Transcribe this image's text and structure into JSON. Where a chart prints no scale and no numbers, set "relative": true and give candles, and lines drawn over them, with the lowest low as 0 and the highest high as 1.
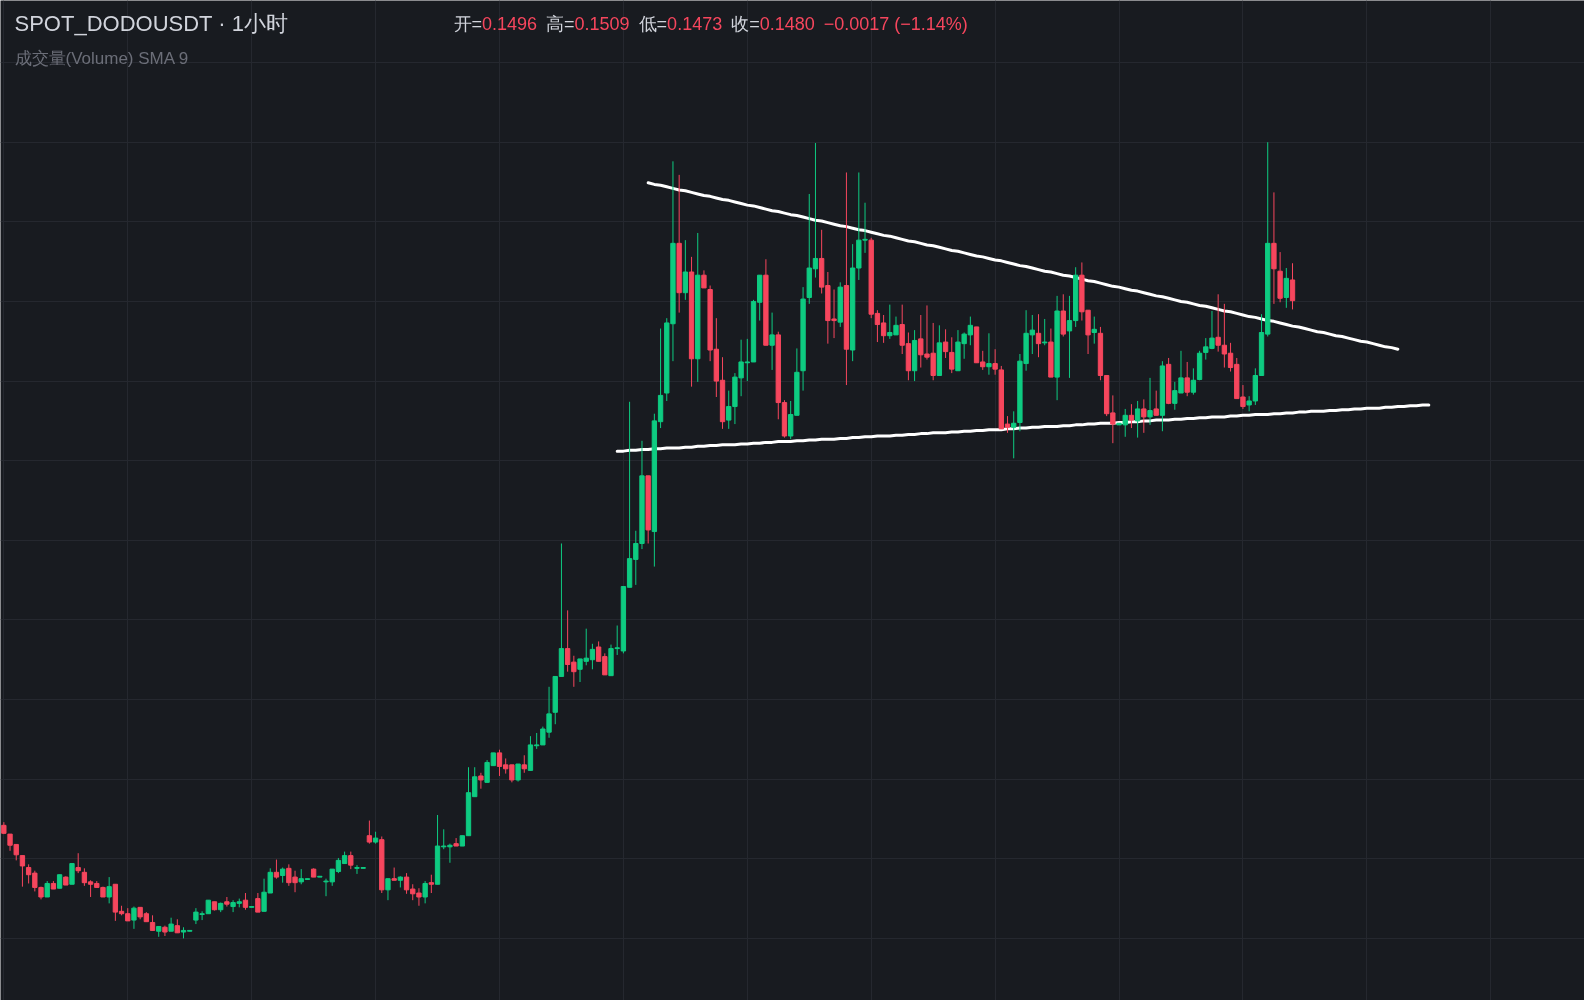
{
  "chart_data": {
    "type": "candlestick",
    "title": "SPOT_DODOUSDT · 1小时",
    "subtitle": "成交量(Volume) SMA 9",
    "annotations": [
      "开=0.1496",
      "高=0.1509",
      "低=0.1473",
      "收=0.1480",
      "−0.0017 (−1.14%)"
    ],
    "relative": true,
    "grid": true,
    "categories": [
      null,
      null,
      null,
      null,
      null,
      null,
      null,
      null,
      null,
      null,
      null,
      null,
      null,
      null,
      null,
      null,
      null,
      null,
      null,
      null,
      null,
      null,
      null,
      null,
      null,
      null,
      null,
      null,
      null,
      null,
      null,
      null,
      null,
      null,
      null,
      null,
      null,
      null,
      null,
      null,
      null,
      null,
      null,
      null,
      null,
      null,
      null,
      null,
      null,
      null,
      null,
      null,
      null,
      null,
      null,
      null,
      null,
      null,
      null,
      null,
      null,
      null,
      null,
      null,
      null,
      null,
      null,
      null,
      null,
      null,
      null,
      null,
      null,
      null,
      null,
      null,
      null,
      null,
      null,
      null,
      null,
      null,
      null,
      null,
      null,
      null,
      null,
      null,
      null,
      null,
      null,
      null,
      null,
      null,
      null,
      null,
      null,
      null,
      null,
      null,
      null,
      null,
      null,
      null,
      null,
      null,
      null,
      null,
      null,
      null,
      null,
      null,
      null,
      null,
      null,
      null,
      null,
      null,
      null,
      null,
      null,
      null,
      null,
      null,
      null,
      null,
      null,
      null,
      null,
      null,
      null,
      null,
      null,
      null,
      null,
      null,
      null,
      null,
      null,
      null,
      null,
      null,
      null,
      null,
      null,
      null,
      null,
      null,
      null,
      null,
      null,
      null,
      null,
      null,
      null,
      null,
      null,
      null,
      null,
      null,
      null,
      null,
      null,
      null,
      null,
      null,
      null,
      null,
      null,
      null,
      null,
      null,
      null,
      null,
      null,
      null,
      null,
      null,
      null,
      null,
      null,
      null,
      null,
      null,
      null,
      null,
      null,
      null,
      null,
      null,
      null,
      null,
      null,
      null,
      null,
      null,
      null,
      null,
      null,
      null,
      null,
      null,
      null,
      null,
      null,
      null,
      null,
      null,
      null,
      null,
      null,
      null,
      null,
      null,
      null,
      null,
      null,
      null,
      null,
      null,
      null,
      null,
      null,
      null,
      null,
      null,
      null,
      null,
      null,
      null,
      null
    ],
    "ohlc": [
      [
        0.142,
        0.146,
        0.131,
        0.132
      ],
      [
        0.131,
        0.131,
        0.11,
        0.117
      ],
      [
        0.118,
        0.118,
        0.098,
        0.105
      ],
      [
        0.104,
        0.104,
        0.065,
        0.091
      ],
      [
        0.089,
        0.093,
        0.069,
        0.08
      ],
      [
        0.082,
        0.085,
        0.059,
        0.064
      ],
      [
        0.064,
        0.065,
        0.049,
        0.052
      ],
      [
        0.052,
        0.072,
        0.052,
        0.069
      ],
      [
        0.069,
        0.072,
        0.062,
        0.062
      ],
      [
        0.063,
        0.08,
        0.063,
        0.08
      ],
      [
        0.077,
        0.078,
        0.067,
        0.067
      ],
      [
        0.068,
        0.094,
        0.068,
        0.094
      ],
      [
        0.089,
        0.107,
        0.082,
        0.085
      ],
      [
        0.083,
        0.088,
        0.066,
        0.07
      ],
      [
        0.071,
        0.073,
        0.052,
        0.068
      ],
      [
        0.069,
        0.072,
        0.064,
        0.064
      ],
      [
        0.064,
        0.065,
        0.052,
        0.052
      ],
      [
        0.052,
        0.077,
        0.044,
        0.065
      ],
      [
        0.068,
        0.068,
        0.022,
        0.033
      ],
      [
        0.034,
        0.041,
        0.029,
        0.031
      ],
      [
        0.031,
        0.038,
        0.022,
        0.022
      ],
      [
        0.023,
        0.04,
        0.012,
        0.038
      ],
      [
        0.039,
        0.039,
        0.024,
        0.027
      ],
      [
        0.031,
        0.033,
        0.021,
        0.021
      ],
      [
        0.02,
        0.029,
        0.01,
        0.01
      ],
      [
        0.009,
        0.015,
        0.002,
        0.015
      ],
      [
        0.014,
        0.016,
        0.003,
        0.008
      ],
      [
        0.009,
        0.026,
        0.009,
        0.018
      ],
      [
        0.016,
        0.024,
        0.007,
        0.007
      ],
      [
        0.008,
        0.014,
        0,
        0.01
      ],
      [
        0.009,
        0.01,
        0.009,
        0.01
      ],
      [
        0.023,
        0.038,
        0.018,
        0.033
      ],
      [
        0.03,
        0.034,
        0.023,
        0.031
      ],
      [
        0.031,
        0.048,
        0.031,
        0.048
      ],
      [
        0.046,
        0.046,
        0.035,
        0.036
      ],
      [
        0.036,
        0.045,
        0.033,
        0.044
      ],
      [
        0.046,
        0.052,
        0.04,
        0.043
      ],
      [
        0.04,
        0.048,
        0.033,
        0.045
      ],
      [
        0.044,
        0.05,
        0.039,
        0.046
      ],
      [
        0.048,
        0.057,
        0.036,
        0.039
      ],
      [
        0.039,
        0.04,
        0.039,
        0.04
      ],
      [
        0.05,
        0.057,
        0.033,
        0.033
      ],
      [
        0.034,
        0.075,
        0.034,
        0.058
      ],
      [
        0.057,
        0.088,
        0.057,
        0.083
      ],
      [
        0.083,
        0.099,
        0.075,
        0.077
      ],
      [
        0.079,
        0.089,
        0.07,
        0.087
      ],
      [
        0.088,
        0.093,
        0.066,
        0.07
      ],
      [
        0.077,
        0.085,
        0.058,
        0.07
      ],
      [
        0.071,
        0.087,
        0.068,
        0.075
      ],
      [
        0.074,
        0.075,
        0.074,
        0.075
      ],
      [
        0.087,
        0.088,
        0.077,
        0.077
      ],
      [
        0.077,
        0.078,
        0.077,
        0.078
      ],
      [
        0.071,
        0.075,
        0.053,
        0.072
      ],
      [
        0.071,
        0.087,
        0.066,
        0.087
      ],
      [
        0.084,
        0.101,
        0.082,
        0.098
      ],
      [
        0.094,
        0.109,
        0.094,
        0.104
      ],
      [
        0.104,
        0.109,
        0.087,
        0.092
      ],
      [
        0.088,
        0.092,
        0.081,
        0.089
      ],
      [
        0.088,
        0.089,
        0.088,
        0.089
      ],
      [
        0.129,
        0.148,
        0.119,
        0.121
      ],
      [
        0.121,
        0.134,
        0.119,
        0.126
      ],
      [
        0.124,
        0.128,
        0.057,
        0.061
      ],
      [
        0.061,
        0.075,
        0.048,
        0.075
      ],
      [
        0.075,
        0.089,
        0.073,
        0.073
      ],
      [
        0.073,
        0.078,
        0.064,
        0.077
      ],
      [
        0.077,
        0.082,
        0.056,
        0.061
      ],
      [
        0.062,
        0.068,
        0.048,
        0.056
      ],
      [
        0.057,
        0.063,
        0.041,
        0.052
      ],
      [
        0.052,
        0.072,
        0.044,
        0.069
      ],
      [
        0.07,
        0.08,
        0.057,
        0.068
      ],
      [
        0.068,
        0.155,
        0.068,
        0.116
      ],
      [
        0.115,
        0.137,
        0.112,
        0.116
      ],
      [
        0.115,
        0.119,
        0.095,
        0.117
      ],
      [
        0.119,
        0.126,
        0.116,
        0.116
      ],
      [
        0.116,
        0.129,
        0.116,
        0.129
      ],
      [
        0.129,
        0.215,
        0.129,
        0.183
      ],
      [
        0.178,
        0.215,
        0.178,
        0.203
      ],
      [
        0.204,
        0.208,
        0.188,
        0.199
      ],
      [
        0.196,
        0.224,
        0.196,
        0.221
      ],
      [
        0.217,
        0.233,
        0.217,
        0.233
      ],
      [
        0.233,
        0.237,
        0.204,
        0.216
      ],
      [
        0.218,
        0.226,
        0.207,
        0.213
      ],
      [
        0.218,
        0.218,
        0.196,
        0.199
      ],
      [
        0.199,
        0.219,
        0.197,
        0.219
      ],
      [
        0.218,
        0.23,
        0.208,
        0.213
      ],
      [
        0.211,
        0.254,
        0.211,
        0.243
      ],
      [
        0.242,
        0.258,
        0.238,
        0.243
      ],
      [
        0.243,
        0.266,
        0.243,
        0.263
      ],
      [
        0.259,
        0.316,
        0.252,
        0.282
      ],
      [
        0.284,
        0.329,
        0.269,
        0.329
      ],
      [
        0.329,
        0.496,
        0.329,
        0.364
      ],
      [
        0.364,
        0.412,
        0.335,
        0.344
      ],
      [
        0.347,
        0.355,
        0.316,
        0.335
      ],
      [
        0.338,
        0.351,
        0.322,
        0.351
      ],
      [
        0.348,
        0.389,
        0.343,
        0.352
      ],
      [
        0.35,
        0.37,
        0.338,
        0.363
      ],
      [
        0.366,
        0.373,
        0.348,
        0.348
      ],
      [
        0.354,
        0.358,
        0.331,
        0.331
      ],
      [
        0.33,
        0.369,
        0.33,
        0.364
      ],
      [
        0.364,
        0.393,
        0.356,
        0.365
      ],
      [
        0.361,
        0.442,
        0.358,
        0.442
      ],
      [
        0.441,
        0.674,
        0.441,
        0.477
      ],
      [
        0.476,
        0.512,
        0.444,
        0.496
      ],
      [
        0.496,
        0.625,
        0.489,
        0.581
      ],
      [
        0.581,
        0.581,
        0.496,
        0.513
      ],
      [
        0.511,
        0.659,
        0.467,
        0.65
      ],
      [
        0.649,
        0.766,
        0.641,
        0.682
      ],
      [
        0.685,
        0.779,
        0.675,
        0.773
      ],
      [
        0.772,
        0.976,
        0.725,
        0.873
      ],
      [
        0.873,
        0.959,
        0.786,
        0.811
      ],
      [
        0.811,
        0.877,
        0.802,
        0.837
      ],
      [
        0.837,
        0.856,
        0.693,
        0.728
      ],
      [
        0.728,
        0.886,
        0.699,
        0.833
      ],
      [
        0.833,
        0.839,
        0.817,
        0.817
      ],
      [
        0.815,
        0.82,
        0.725,
        0.739
      ],
      [
        0.74,
        0.779,
        0.68,
        0.7
      ],
      [
        0.701,
        0.73,
        0.64,
        0.649
      ],
      [
        0.651,
        0.688,
        0.64,
        0.668
      ],
      [
        0.668,
        0.71,
        0.646,
        0.705
      ],
      [
        0.704,
        0.752,
        0.681,
        0.724
      ],
      [
        0.723,
        0.753,
        0.7,
        0.724
      ],
      [
        0.724,
        0.802,
        0.724,
        0.8
      ],
      [
        0.799,
        0.833,
        0.776,
        0.833
      ],
      [
        0.833,
        0.853,
        0.745,
        0.745
      ],
      [
        0.745,
        0.786,
        0.714,
        0.758
      ],
      [
        0.758,
        0.762,
        0.652,
        0.673
      ],
      [
        0.673,
        0.676,
        0.629,
        0.631
      ],
      [
        0.631,
        0.675,
        0.627,
        0.658
      ],
      [
        0.657,
        0.741,
        0.657,
        0.711
      ],
      [
        0.713,
        0.818,
        0.688,
        0.803
      ],
      [
        0.805,
        0.935,
        0.797,
        0.842
      ],
      [
        0.841,
        0.999,
        0.83,
        0.854
      ],
      [
        0.854,
        0.89,
        0.81,
        0.818
      ],
      [
        0.82,
        0.837,
        0.747,
        0.776
      ],
      [
        0.778,
        0.815,
        0.754,
        0.776
      ],
      [
        0.774,
        0.824,
        0.768,
        0.818
      ],
      [
        0.82,
        0.962,
        0.695,
        0.74
      ],
      [
        0.739,
        0.872,
        0.725,
        0.842
      ],
      [
        0.842,
        0.962,
        0.827,
        0.877
      ],
      [
        0.877,
        0.924,
        0.861,
        0.878
      ],
      [
        0.877,
        0.88,
        0.779,
        0.784
      ],
      [
        0.785,
        0.789,
        0.749,
        0.771
      ],
      [
        0.773,
        0.783,
        0.748,
        0.757
      ],
      [
        0.757,
        0.796,
        0.753,
        0.761
      ],
      [
        0.758,
        0.781,
        0.758,
        0.77
      ],
      [
        0.771,
        0.796,
        0.734,
        0.745
      ],
      [
        0.747,
        0.761,
        0.701,
        0.713
      ],
      [
        0.713,
        0.764,
        0.7,
        0.751
      ],
      [
        0.753,
        0.783,
        0.717,
        0.733
      ],
      [
        0.734,
        0.795,
        0.727,
        0.73
      ],
      [
        0.735,
        0.773,
        0.701,
        0.707
      ],
      [
        0.707,
        0.77,
        0.707,
        0.748
      ],
      [
        0.749,
        0.765,
        0.729,
        0.737
      ],
      [
        0.736,
        0.755,
        0.71,
        0.715
      ],
      [
        0.713,
        0.764,
        0.713,
        0.749
      ],
      [
        0.747,
        0.761,
        0.728,
        0.759
      ],
      [
        0.758,
        0.781,
        0.745,
        0.77
      ],
      [
        0.768,
        0.768,
        0.723,
        0.723
      ],
      [
        0.724,
        0.738,
        0.714,
        0.718
      ],
      [
        0.718,
        0.76,
        0.708,
        0.722
      ],
      [
        0.722,
        0.74,
        0.708,
        0.715
      ],
      [
        0.714,
        0.719,
        0.64,
        0.64
      ],
      [
        0.646,
        0.656,
        0.635,
        0.642
      ],
      [
        0.642,
        0.662,
        0.603,
        0.647
      ],
      [
        0.648,
        0.734,
        0.637,
        0.725
      ],
      [
        0.722,
        0.789,
        0.713,
        0.76
      ],
      [
        0.758,
        0.783,
        0.734,
        0.764
      ],
      [
        0.76,
        0.784,
        0.73,
        0.747
      ],
      [
        0.748,
        0.778,
        0.745,
        0.749
      ],
      [
        0.749,
        0.766,
        0.705,
        0.705
      ],
      [
        0.705,
        0.807,
        0.676,
        0.788
      ],
      [
        0.788,
        0.809,
        0.756,
        0.759
      ],
      [
        0.763,
        0.807,
        0.704,
        0.776
      ],
      [
        0.776,
        0.843,
        0.768,
        0.833
      ],
      [
        0.833,
        0.849,
        0.776,
        0.787
      ],
      [
        0.789,
        0.789,
        0.734,
        0.758
      ],
      [
        0.761,
        0.781,
        0.747,
        0.765
      ],
      [
        0.76,
        0.768,
        0.701,
        0.707
      ],
      [
        0.707,
        0.707,
        0.656,
        0.659
      ],
      [
        0.66,
        0.682,
        0.622,
        0.646
      ],
      [
        0.645,
        0.647,
        0.645,
        0.647
      ],
      [
        0.645,
        0.665,
        0.63,
        0.657
      ],
      [
        0.657,
        0.671,
        0.641,
        0.651
      ],
      [
        0.65,
        0.675,
        0.629,
        0.665
      ],
      [
        0.665,
        0.677,
        0.635,
        0.655
      ],
      [
        0.655,
        0.704,
        0.645,
        0.663
      ],
      [
        0.665,
        0.688,
        0.657,
        0.657
      ],
      [
        0.657,
        0.725,
        0.637,
        0.719
      ],
      [
        0.721,
        0.729,
        0.671,
        0.672
      ],
      [
        0.672,
        0.699,
        0.664,
        0.688
      ],
      [
        0.685,
        0.738,
        0.685,
        0.704
      ],
      [
        0.704,
        0.724,
        0.681,
        0.686
      ],
      [
        0.686,
        0.716,
        0.683,
        0.701
      ],
      [
        0.702,
        0.738,
        0.701,
        0.735
      ],
      [
        0.736,
        0.754,
        0.727,
        0.743
      ],
      [
        0.741,
        0.788,
        0.74,
        0.754
      ],
      [
        0.755,
        0.809,
        0.737,
        0.745
      ],
      [
        0.745,
        0.797,
        0.717,
        0.734
      ],
      [
        0.735,
        0.748,
        0.712,
        0.717
      ],
      [
        0.721,
        0.729,
        0.678,
        0.678
      ],
      [
        0.68,
        0.695,
        0.665,
        0.668
      ],
      [
        0.67,
        0.681,
        0.662,
        0.675
      ],
      [
        0.675,
        0.716,
        0.67,
        0.707
      ],
      [
        0.707,
        0.784,
        0.707,
        0.761
      ],
      [
        0.759,
        1,
        0.756,
        0.873
      ],
      [
        0.873,
        0.937,
        0.797,
        0.841
      ],
      [
        0.838,
        0.862,
        0.799,
        0.804
      ],
      [
        0.805,
        0.842,
        0.792,
        0.829
      ],
      [
        0.827,
        0.848,
        0.79,
        0.801
      ],
      null,
      null,
      null,
      null,
      null,
      null,
      null,
      null,
      null,
      null,
      null,
      null,
      null,
      null,
      null,
      null,
      null,
      null,
      null,
      null,
      null,
      null
    ],
    "colors": [
      "#f6465d",
      "#f6465d",
      "#f6465d",
      "#f6465d",
      "#f6465d",
      "#f6465d",
      "#f6465d",
      "#0ecb81",
      "#f6465d",
      "#0ecb81",
      "#f6465d",
      "#0ecb81",
      "#f6465d",
      "#f6465d",
      "#f6465d",
      "#f6465d",
      "#f6465d",
      "#0ecb81",
      "#f6465d",
      "#f6465d",
      "#f6465d",
      "#0ecb81",
      "#f6465d",
      "#f6465d",
      "#f6465d",
      "#0ecb81",
      "#f6465d",
      "#0ecb81",
      "#f6465d",
      "#0ecb81",
      "#0ecb81",
      "#0ecb81",
      "#0ecb81",
      "#0ecb81",
      "#f6465d",
      "#0ecb81",
      "#f6465d",
      "#0ecb81",
      "#0ecb81",
      "#f6465d",
      "#0ecb81",
      "#f6465d",
      "#0ecb81",
      "#0ecb81",
      "#f6465d",
      "#0ecb81",
      "#f6465d",
      "#f6465d",
      "#0ecb81",
      "#0ecb81",
      "#f6465d",
      "#0ecb81",
      "#0ecb81",
      "#0ecb81",
      "#0ecb81",
      "#0ecb81",
      "#f6465d",
      "#0ecb81",
      "#0ecb81",
      "#f6465d",
      "#0ecb81",
      "#f6465d",
      "#0ecb81",
      "#f6465d",
      "#0ecb81",
      "#f6465d",
      "#f6465d",
      "#f6465d",
      "#0ecb81",
      "#f6465d",
      "#0ecb81",
      "#0ecb81",
      "#0ecb81",
      "#f6465d",
      "#0ecb81",
      "#0ecb81",
      "#0ecb81",
      "#f6465d",
      "#0ecb81",
      "#0ecb81",
      "#f6465d",
      "#f6465d",
      "#f6465d",
      "#0ecb81",
      "#f6465d",
      "#0ecb81",
      "#0ecb81",
      "#0ecb81",
      "#0ecb81",
      "#0ecb81",
      "#0ecb81",
      "#f6465d",
      "#f6465d",
      "#0ecb81",
      "#0ecb81",
      "#0ecb81",
      "#f6465d",
      "#f6465d",
      "#0ecb81",
      "#0ecb81",
      "#0ecb81",
      "#0ecb81",
      "#0ecb81",
      "#0ecb81",
      "#f6465d",
      "#0ecb81",
      "#0ecb81",
      "#0ecb81",
      "#0ecb81",
      "#f6465d",
      "#0ecb81",
      "#f6465d",
      "#0ecb81",
      "#f6465d",
      "#f6465d",
      "#f6465d",
      "#f6465d",
      "#0ecb81",
      "#0ecb81",
      "#0ecb81",
      "#0ecb81",
      "#0ecb81",
      "#0ecb81",
      "#f6465d",
      "#0ecb81",
      "#f6465d",
      "#f6465d",
      "#0ecb81",
      "#0ecb81",
      "#0ecb81",
      "#0ecb81",
      "#0ecb81",
      "#f6465d",
      "#f6465d",
      "#f6465d",
      "#0ecb81",
      "#f6465d",
      "#0ecb81",
      "#0ecb81",
      "#0ecb81",
      "#f6465d",
      "#f6465d",
      "#f6465d",
      "#0ecb81",
      "#0ecb81",
      "#f6465d",
      "#f6465d",
      "#0ecb81",
      "#f6465d",
      "#f6465d",
      "#f6465d",
      "#0ecb81",
      "#f6465d",
      "#f6465d",
      "#0ecb81",
      "#0ecb81",
      "#0ecb81",
      "#f6465d",
      "#f6465d",
      "#0ecb81",
      "#f6465d",
      "#f6465d",
      "#f6465d",
      "#0ecb81",
      "#0ecb81",
      "#0ecb81",
      "#0ecb81",
      "#f6465d",
      "#0ecb81",
      "#f6465d",
      "#0ecb81",
      "#f6465d",
      "#0ecb81",
      "#0ecb81",
      "#f6465d",
      "#f6465d",
      "#0ecb81",
      "#f6465d",
      "#f6465d",
      "#f6465d",
      "#0ecb81",
      "#0ecb81",
      "#f6465d",
      "#0ecb81",
      "#f6465d",
      "#0ecb81",
      "#f6465d",
      "#0ecb81",
      "#f6465d",
      "#0ecb81",
      "#0ecb81",
      "#f6465d",
      "#0ecb81",
      "#0ecb81",
      "#0ecb81",
      "#0ecb81",
      "#f6465d",
      "#f6465d",
      "#f6465d",
      "#f6465d",
      "#f6465d",
      "#0ecb81",
      "#0ecb81",
      "#0ecb81",
      "#0ecb81",
      "#f6465d",
      "#f6465d",
      "#0ecb81",
      "#f6465d",
      null,
      null,
      null,
      null,
      null,
      null,
      null,
      null,
      null,
      null,
      null,
      null,
      null,
      null,
      null,
      null,
      null,
      null,
      null,
      null,
      null,
      null
    ],
    "series": [
      {
        "type": "line",
        "color": "#ffffff",
        "values": [
          null,
          null,
          null,
          null,
          null,
          null,
          null,
          null,
          null,
          null,
          null,
          null,
          null,
          null,
          null,
          null,
          null,
          null,
          null,
          null,
          null,
          null,
          null,
          null,
          null,
          null,
          null,
          null,
          null,
          null,
          null,
          null,
          null,
          null,
          null,
          null,
          null,
          null,
          null,
          null,
          null,
          null,
          null,
          null,
          null,
          null,
          null,
          null,
          null,
          null,
          null,
          null,
          null,
          null,
          null,
          null,
          null,
          null,
          null,
          null,
          null,
          null,
          null,
          null,
          null,
          null,
          null,
          null,
          null,
          null,
          null,
          null,
          null,
          null,
          null,
          null,
          null,
          null,
          null,
          null,
          null,
          null,
          null,
          null,
          null,
          null,
          null,
          null,
          null,
          null,
          null,
          null,
          null,
          null,
          null,
          null,
          null,
          null,
          null,
          null,
          null,
          null,
          null,
          null,
          0.949,
          0.947,
          0.946,
          0.944,
          0.942,
          0.94,
          0.939,
          0.937,
          0.935,
          0.933,
          0.932,
          0.93,
          0.928,
          0.927,
          0.925,
          0.923,
          0.921,
          0.92,
          0.918,
          0.916,
          0.914,
          0.913,
          0.911,
          0.909,
          0.908,
          0.906,
          0.904,
          0.902,
          0.901,
          0.899,
          0.897,
          0.895,
          0.894,
          0.892,
          0.89,
          0.889,
          0.887,
          0.885,
          0.883,
          0.882,
          0.88,
          0.878,
          0.876,
          0.875,
          0.873,
          0.871,
          0.87,
          0.868,
          0.866,
          0.864,
          0.863,
          0.861,
          0.859,
          0.857,
          0.856,
          0.854,
          0.852,
          0.851,
          0.849,
          0.847,
          0.845,
          0.844,
          0.842,
          0.84,
          0.838,
          0.837,
          0.835,
          0.833,
          0.832,
          0.83,
          0.828,
          0.826,
          0.825,
          0.823,
          0.821,
          0.819,
          0.818,
          0.816,
          0.814,
          0.813,
          0.811,
          0.809,
          0.807,
          0.806,
          0.804,
          0.802,
          0.8,
          0.799,
          0.797,
          0.795,
          0.794,
          0.792,
          0.79,
          0.788,
          0.787,
          0.785,
          0.783,
          0.781,
          0.78,
          0.778,
          0.776,
          0.775,
          0.773,
          0.771,
          0.769,
          0.768,
          0.766,
          0.764,
          0.762,
          0.761,
          0.759,
          0.757,
          0.756,
          0.754,
          0.752,
          0.75,
          0.749,
          0.747,
          0.745,
          0.743,
          0.742,
          0.74,
          null,
          null,
          null,
          null,
          null
        ]
      },
      {
        "type": "line",
        "color": "#ffffff",
        "values": [
          null,
          null,
          null,
          null,
          null,
          null,
          null,
          null,
          null,
          null,
          null,
          null,
          null,
          null,
          null,
          null,
          null,
          null,
          null,
          null,
          null,
          null,
          null,
          null,
          null,
          null,
          null,
          null,
          null,
          null,
          null,
          null,
          null,
          null,
          null,
          null,
          null,
          null,
          null,
          null,
          null,
          null,
          null,
          null,
          null,
          null,
          null,
          null,
          null,
          null,
          null,
          null,
          null,
          null,
          null,
          null,
          null,
          null,
          null,
          null,
          null,
          null,
          null,
          null,
          null,
          null,
          null,
          null,
          null,
          null,
          null,
          null,
          null,
          null,
          null,
          null,
          null,
          null,
          null,
          null,
          null,
          null,
          null,
          null,
          null,
          null,
          null,
          null,
          null,
          null,
          null,
          null,
          null,
          null,
          null,
          null,
          null,
          null,
          null,
          0.612,
          0.612,
          0.613,
          0.613,
          0.614,
          0.614,
          0.615,
          0.615,
          0.616,
          0.616,
          0.616,
          0.617,
          0.617,
          0.618,
          0.618,
          0.619,
          0.619,
          0.62,
          0.62,
          0.62,
          0.621,
          0.621,
          0.622,
          0.622,
          0.623,
          0.623,
          0.624,
          0.624,
          0.624,
          0.625,
          0.625,
          0.626,
          0.626,
          0.627,
          0.627,
          0.627,
          0.628,
          0.628,
          0.629,
          0.629,
          0.63,
          0.63,
          0.631,
          0.631,
          0.631,
          0.632,
          0.632,
          0.633,
          0.633,
          0.634,
          0.634,
          0.635,
          0.635,
          0.635,
          0.636,
          0.636,
          0.637,
          0.637,
          0.638,
          0.638,
          0.639,
          0.639,
          0.639,
          0.64,
          0.64,
          0.641,
          0.641,
          0.642,
          0.642,
          0.643,
          0.643,
          0.643,
          0.644,
          0.644,
          0.645,
          0.645,
          0.646,
          0.646,
          0.647,
          0.647,
          0.647,
          0.648,
          0.648,
          0.649,
          0.649,
          0.65,
          0.65,
          0.651,
          0.651,
          0.651,
          0.652,
          0.652,
          0.653,
          0.653,
          0.654,
          0.654,
          0.655,
          0.655,
          0.655,
          0.656,
          0.656,
          0.657,
          0.657,
          0.658,
          0.658,
          0.658,
          0.659,
          0.659,
          0.66,
          0.66,
          0.661,
          0.661,
          0.662,
          0.662,
          0.662,
          0.663,
          0.663,
          0.664,
          0.664,
          0.665,
          0.665,
          0.666,
          0.666,
          0.666,
          0.667,
          0.667,
          0.668,
          0.668,
          0.669,
          0.669,
          0.67,
          0.67
        ]
      }
    ]
  }
}
